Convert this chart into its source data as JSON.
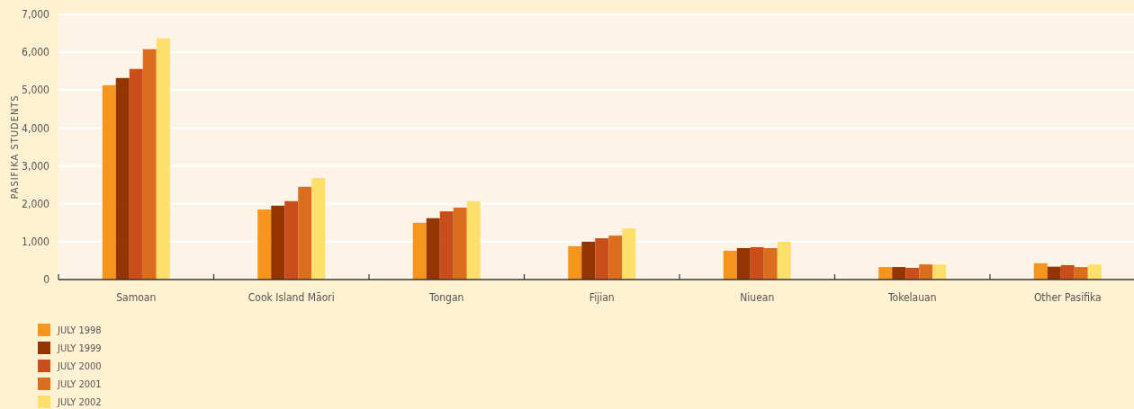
{
  "chart_data": {
    "type": "bar",
    "ylabel": "PASIFIKA STUDENTS",
    "categories": [
      "Samoan",
      "Cook Island Māori",
      "Tongan",
      "Fijian",
      "Niuean",
      "Tokelauan",
      "Other Pasifika"
    ],
    "series": [
      {
        "name": "JULY 1998",
        "color": "#f7941d",
        "values": [
          5130,
          1850,
          1500,
          880,
          760,
          330,
          430
        ]
      },
      {
        "name": "JULY 1999",
        "color": "#943500",
        "values": [
          5320,
          1950,
          1620,
          1000,
          830,
          330,
          340
        ]
      },
      {
        "name": "JULY 2000",
        "color": "#c94e1b",
        "values": [
          5560,
          2070,
          1800,
          1090,
          855,
          310,
          380
        ]
      },
      {
        "name": "JULY 2001",
        "color": "#db6e1c",
        "values": [
          6080,
          2450,
          1900,
          1160,
          830,
          400,
          330
        ]
      },
      {
        "name": "JULY 2002",
        "color": "#ffdf6c",
        "values": [
          6370,
          2680,
          2070,
          1350,
          1000,
          400,
          400
        ]
      }
    ],
    "ylim": [
      0,
      7000
    ],
    "yticks": [
      {
        "value": 0,
        "label": "0"
      },
      {
        "value": 1000,
        "label": "1,000"
      },
      {
        "value": 2000,
        "label": "2,000"
      },
      {
        "value": 3000,
        "label": "3,000"
      },
      {
        "value": 4000,
        "label": "4,000"
      },
      {
        "value": 5000,
        "label": "5,000"
      },
      {
        "value": 6000,
        "label": "6,000"
      },
      {
        "value": 7000,
        "label": "7,000"
      }
    ],
    "grid": "y",
    "legend": "bottom left"
  }
}
